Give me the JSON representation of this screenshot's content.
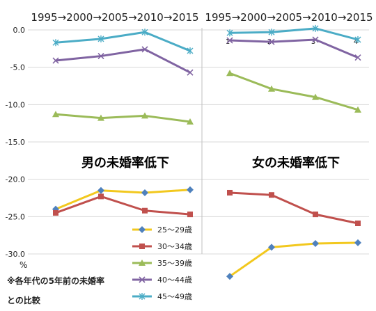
{
  "colors": {
    "25-29": "#f2c81e",
    "30-34": "#c0504d",
    "35-39": "#9bbb59",
    "40-44": "#8064a2",
    "45-49": "#4bacc6",
    "grid": "#d9d9d9",
    "axis": "#808080"
  },
  "chart_data": [
    {
      "type": "line",
      "panel": "left",
      "title": "男の未婚率低下",
      "x_header": "1995→2000→2005→2010→2015",
      "x": [
        "2000",
        "2005",
        "2010",
        "2015"
      ],
      "ylim": [
        -30,
        0
      ],
      "yticks": [
        "0.0",
        "-5.0",
        "-10.0",
        "-15.0",
        "-20.0",
        "-25.0",
        "-30.0"
      ],
      "y_unit": "%",
      "grid": "horizontal",
      "series": [
        {
          "name": "25～29歳",
          "key": "25-29",
          "marker": "diamond",
          "values": [
            -24.0,
            -21.5,
            -21.8,
            -21.4
          ]
        },
        {
          "name": "30～34歳",
          "key": "30-34",
          "marker": "square",
          "values": [
            -24.5,
            -22.3,
            -24.2,
            -24.7
          ]
        },
        {
          "name": "35～39歳",
          "key": "35-39",
          "marker": "triangle",
          "values": [
            -11.3,
            -11.8,
            -11.5,
            -12.3
          ]
        },
        {
          "name": "40～44歳",
          "key": "40-44",
          "marker": "x",
          "values": [
            -4.1,
            -3.5,
            -2.6,
            -5.7
          ]
        },
        {
          "name": "45～49歳",
          "key": "45-49",
          "marker": "star",
          "values": [
            -1.7,
            -1.2,
            -0.3,
            -2.8
          ]
        }
      ]
    },
    {
      "type": "line",
      "panel": "right",
      "title": "女の未婚率低下",
      "x_header": "1995→2000→2005→2010→2015",
      "x": [
        "1",
        "2",
        "3",
        "4"
      ],
      "ylim": [
        -30,
        0
      ],
      "series": [
        {
          "name": "25～29歳",
          "key": "25-29",
          "marker": "diamond",
          "values": [
            -33.0,
            -29.1,
            -28.6,
            -28.5
          ]
        },
        {
          "name": "30～34歳",
          "key": "30-34",
          "marker": "square",
          "values": [
            -21.8,
            -22.1,
            -24.7,
            -25.9
          ]
        },
        {
          "name": "35～39歳",
          "key": "35-39",
          "marker": "triangle",
          "values": [
            -5.8,
            -7.9,
            -9.0,
            -10.7
          ]
        },
        {
          "name": "40～44歳",
          "key": "40-44",
          "marker": "x",
          "values": [
            -1.4,
            -1.6,
            -1.3,
            -3.7
          ]
        },
        {
          "name": "45～49歳",
          "key": "45-49",
          "marker": "star",
          "values": [
            -0.4,
            -0.3,
            0.2,
            -1.3
          ]
        }
      ]
    }
  ],
  "legend": [
    "25～29歳",
    "30～34歳",
    "35～39歳",
    "40～44歳",
    "45～49歳"
  ],
  "note": [
    "※各年代の5年前の未婚率",
    "との比較"
  ]
}
